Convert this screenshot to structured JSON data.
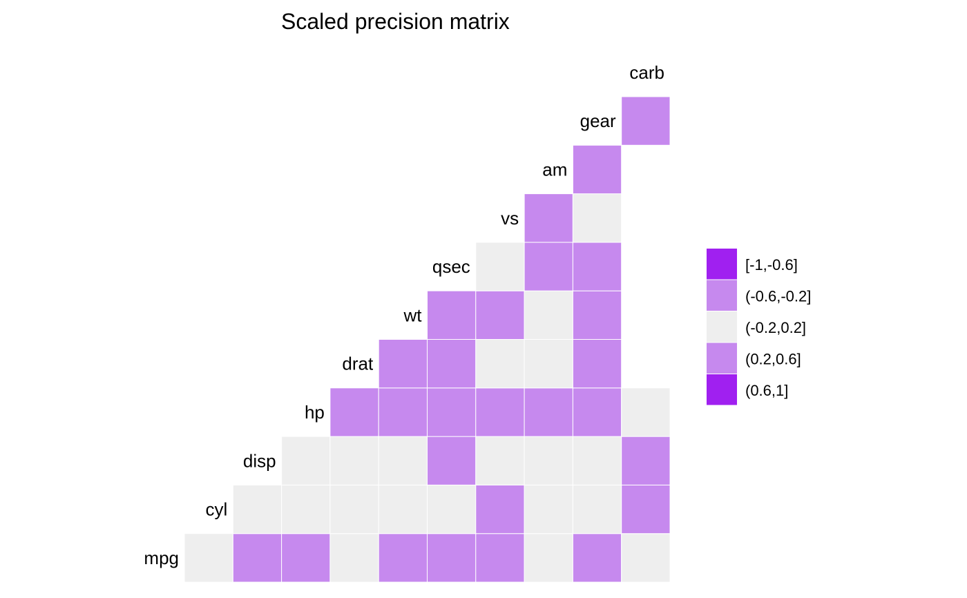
{
  "chart_data": {
    "type": "heatmap",
    "title": "Scaled precision matrix",
    "variables": [
      "mpg",
      "cyl",
      "disp",
      "hp",
      "drat",
      "wt",
      "qsec",
      "vs",
      "am",
      "gear",
      "carb"
    ],
    "legend": {
      "position": "right",
      "bins": [
        {
          "label": "[-1,-0.6]",
          "color": "#a020f0"
        },
        {
          "label": "(-0.6,-0.2]",
          "color": "#c689ee"
        },
        {
          "label": "(-0.2,0.2]",
          "color": "#eeeeee"
        },
        {
          "label": "(0.2,0.6]",
          "color": "#c689ee"
        },
        {
          "label": "(0.6,1]",
          "color": "#a020f0"
        }
      ]
    },
    "cells": [
      {
        "row": "mpg",
        "col": "mpg",
        "bin": 2
      },
      {
        "row": "mpg",
        "col": "cyl",
        "bin": 3
      },
      {
        "row": "mpg",
        "col": "disp",
        "bin": 3
      },
      {
        "row": "mpg",
        "col": "hp",
        "bin": 2
      },
      {
        "row": "mpg",
        "col": "drat",
        "bin": 3
      },
      {
        "row": "mpg",
        "col": "wt",
        "bin": 3
      },
      {
        "row": "mpg",
        "col": "qsec",
        "bin": 3
      },
      {
        "row": "mpg",
        "col": "vs",
        "bin": 2
      },
      {
        "row": "mpg",
        "col": "am",
        "bin": 3
      },
      {
        "row": "mpg",
        "col": "gear",
        "bin": 2
      },
      {
        "row": "cyl",
        "col": "cyl",
        "bin": 2
      },
      {
        "row": "cyl",
        "col": "disp",
        "bin": 2
      },
      {
        "row": "cyl",
        "col": "hp",
        "bin": 2
      },
      {
        "row": "cyl",
        "col": "drat",
        "bin": 2
      },
      {
        "row": "cyl",
        "col": "wt",
        "bin": 2
      },
      {
        "row": "cyl",
        "col": "qsec",
        "bin": 3
      },
      {
        "row": "cyl",
        "col": "vs",
        "bin": 2
      },
      {
        "row": "cyl",
        "col": "am",
        "bin": 2
      },
      {
        "row": "cyl",
        "col": "gear",
        "bin": 3
      },
      {
        "row": "disp",
        "col": "disp",
        "bin": 2
      },
      {
        "row": "disp",
        "col": "hp",
        "bin": 2
      },
      {
        "row": "disp",
        "col": "drat",
        "bin": 2
      },
      {
        "row": "disp",
        "col": "wt",
        "bin": 3
      },
      {
        "row": "disp",
        "col": "qsec",
        "bin": 2
      },
      {
        "row": "disp",
        "col": "vs",
        "bin": 2
      },
      {
        "row": "disp",
        "col": "am",
        "bin": 2
      },
      {
        "row": "disp",
        "col": "gear",
        "bin": 3
      },
      {
        "row": "hp",
        "col": "hp",
        "bin": 3
      },
      {
        "row": "hp",
        "col": "drat",
        "bin": 3
      },
      {
        "row": "hp",
        "col": "wt",
        "bin": 3
      },
      {
        "row": "hp",
        "col": "qsec",
        "bin": 3
      },
      {
        "row": "hp",
        "col": "vs",
        "bin": 3
      },
      {
        "row": "hp",
        "col": "am",
        "bin": 3
      },
      {
        "row": "hp",
        "col": "gear",
        "bin": 2
      },
      {
        "row": "drat",
        "col": "drat",
        "bin": 3
      },
      {
        "row": "drat",
        "col": "wt",
        "bin": 3
      },
      {
        "row": "drat",
        "col": "qsec",
        "bin": 2
      },
      {
        "row": "drat",
        "col": "vs",
        "bin": 2
      },
      {
        "row": "drat",
        "col": "am",
        "bin": 3
      },
      {
        "row": "wt",
        "col": "wt",
        "bin": 3
      },
      {
        "row": "wt",
        "col": "qsec",
        "bin": 3
      },
      {
        "row": "wt",
        "col": "vs",
        "bin": 2
      },
      {
        "row": "wt",
        "col": "am",
        "bin": 3
      },
      {
        "row": "qsec",
        "col": "qsec",
        "bin": 2
      },
      {
        "row": "qsec",
        "col": "vs",
        "bin": 3
      },
      {
        "row": "qsec",
        "col": "am",
        "bin": 3
      },
      {
        "row": "vs",
        "col": "vs",
        "bin": 3
      },
      {
        "row": "vs",
        "col": "am",
        "bin": 2
      },
      {
        "row": "am",
        "col": "am",
        "bin": 3
      },
      {
        "row": "gear",
        "col": "gear",
        "bin": 3
      }
    ]
  }
}
